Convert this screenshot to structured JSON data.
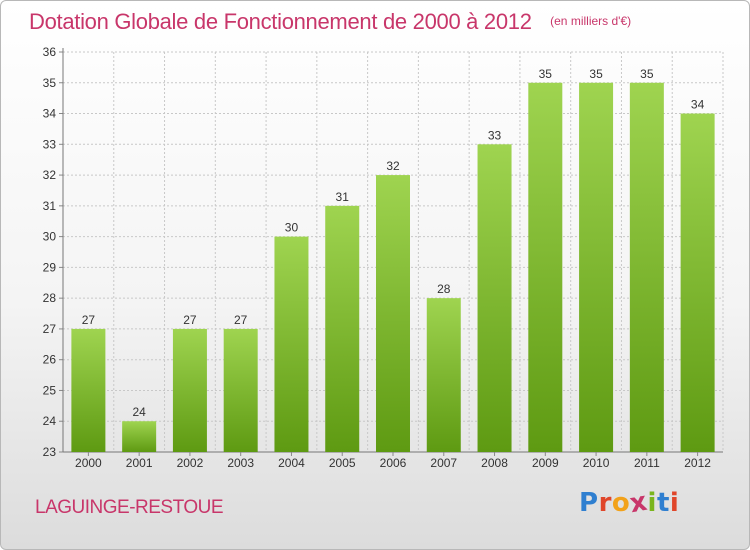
{
  "chart_data": {
    "type": "bar",
    "title": "Dotation Globale de Fonctionnement de 2000 à 2012",
    "subtitle": "(en milliers d'€)",
    "categories": [
      "2000",
      "2001",
      "2002",
      "2003",
      "2004",
      "2005",
      "2006",
      "2007",
      "2008",
      "2009",
      "2010",
      "2011",
      "2012"
    ],
    "values": [
      27,
      24,
      27,
      27,
      30,
      31,
      32,
      28,
      33,
      35,
      35,
      35,
      34
    ],
    "ylim": [
      23,
      36
    ],
    "yticks": [
      23,
      24,
      25,
      26,
      27,
      28,
      29,
      30,
      31,
      32,
      33,
      34,
      35,
      36
    ],
    "grid": true,
    "colors": {
      "bar_top": "#9fd450",
      "bar_bottom": "#5e9a12",
      "grid": "#c8c8c8",
      "title": "#c8366a"
    }
  },
  "footer": {
    "commune": "LAGUINGE-RESTOUE",
    "logo_letters": [
      {
        "ch": "P",
        "color": "#2f7fd0"
      },
      {
        "ch": "r",
        "color": "#e0462a"
      },
      {
        "ch": "o",
        "color": "#f2a21a"
      },
      {
        "ch": "x",
        "color": "#c8366a"
      },
      {
        "ch": "i",
        "color": "#7ab51d"
      },
      {
        "ch": "t",
        "color": "#2f7fd0"
      },
      {
        "ch": "i",
        "color": "#e0462a"
      }
    ]
  }
}
